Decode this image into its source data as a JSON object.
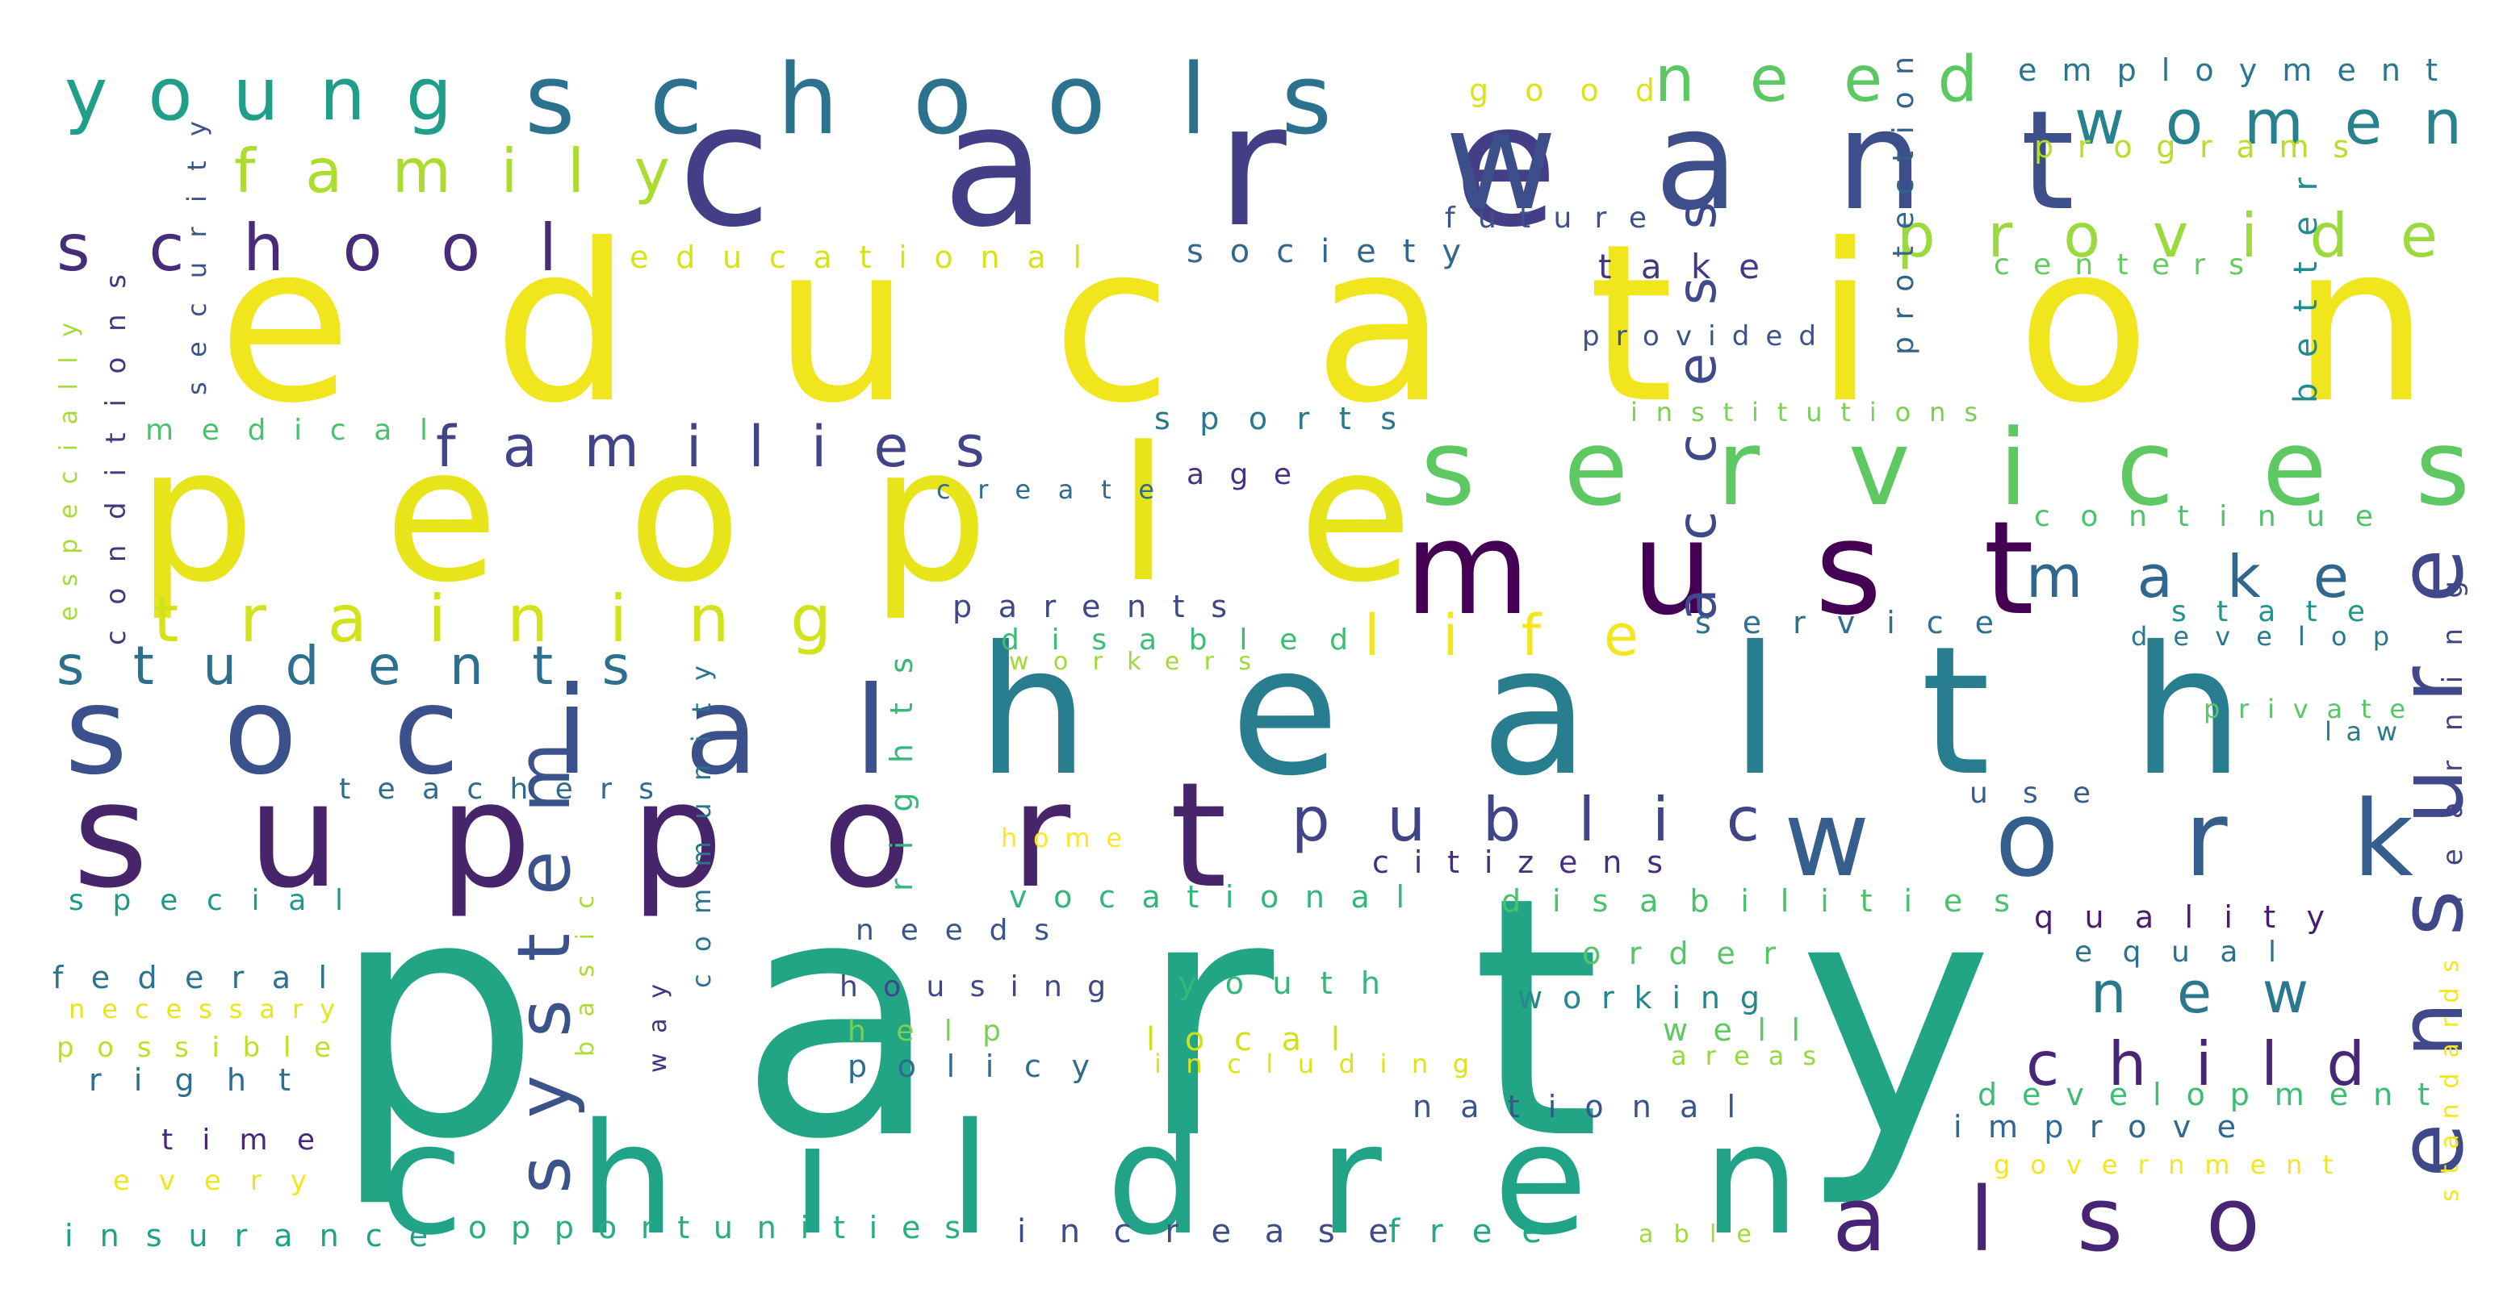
{
  "words": [
    {
      "text": "party",
      "color": "#21a585"
    },
    {
      "text": "education",
      "color": "#f1e51d"
    },
    {
      "text": "people",
      "color": "#e7e419"
    },
    {
      "text": "health",
      "color": "#287d8e"
    },
    {
      "text": "care",
      "color": "#433e85"
    },
    {
      "text": "support",
      "color": "#46256b"
    },
    {
      "text": "want",
      "color": "#3c4f8a"
    },
    {
      "text": "children",
      "color": "#20a386"
    },
    {
      "text": "social",
      "color": "#3b518b"
    },
    {
      "text": "services",
      "color": "#5ec962"
    },
    {
      "text": "must",
      "color": "#440154"
    },
    {
      "text": "work",
      "color": "#355e8d"
    },
    {
      "text": "ensure",
      "color": "#3f4889"
    },
    {
      "text": "schools",
      "color": "#2c728e"
    },
    {
      "text": "young",
      "color": "#1f9e89"
    },
    {
      "text": "system",
      "color": "#3b528b"
    },
    {
      "text": "also",
      "color": "#482475"
    },
    {
      "text": "school",
      "color": "#472c7a"
    },
    {
      "text": "family",
      "color": "#addc30"
    },
    {
      "text": "families",
      "color": "#414487"
    },
    {
      "text": "training",
      "color": "#d2e21b"
    },
    {
      "text": "students",
      "color": "#2d708e"
    },
    {
      "text": "public",
      "color": "#404588"
    },
    {
      "text": "provide",
      "color": "#9bd93c"
    },
    {
      "text": "need",
      "color": "#5cc863"
    },
    {
      "text": "women",
      "color": "#26828e"
    },
    {
      "text": "make",
      "color": "#31668e"
    },
    {
      "text": "child",
      "color": "#482677"
    },
    {
      "text": "new",
      "color": "#2a788e"
    },
    {
      "text": "life",
      "color": "#f4e61e"
    },
    {
      "text": "access",
      "color": "#3e4a89"
    },
    {
      "text": "good",
      "color": "#dde318"
    },
    {
      "text": "employment",
      "color": "#2a768e"
    },
    {
      "text": "programs",
      "color": "#b8de29"
    },
    {
      "text": "future",
      "color": "#3b528b"
    },
    {
      "text": "society",
      "color": "#31688e"
    },
    {
      "text": "educational",
      "color": "#d8e219"
    },
    {
      "text": "take",
      "color": "#453781"
    },
    {
      "text": "centers",
      "color": "#63cb5f"
    },
    {
      "text": "protection",
      "color": "#33638d"
    },
    {
      "text": "better",
      "color": "#228c8d"
    },
    {
      "text": "provided",
      "color": "#3b528b"
    },
    {
      "text": "institutions",
      "color": "#7ad151"
    },
    {
      "text": "security",
      "color": "#39558c"
    },
    {
      "text": "conditions",
      "color": "#453882"
    },
    {
      "text": "especially",
      "color": "#a5db36"
    },
    {
      "text": "medical",
      "color": "#4ac16d"
    },
    {
      "text": "sports",
      "color": "#2a788e"
    },
    {
      "text": "age",
      "color": "#46327e"
    },
    {
      "text": "create",
      "color": "#2f6c8e"
    },
    {
      "text": "continue",
      "color": "#4ec36b"
    },
    {
      "text": "parents",
      "color": "#3f4788"
    },
    {
      "text": "disabled",
      "color": "#3dbc74"
    },
    {
      "text": "workers",
      "color": "#a0da39"
    },
    {
      "text": "service",
      "color": "#2d718e"
    },
    {
      "text": "state",
      "color": "#1f958b"
    },
    {
      "text": "develop",
      "color": "#2a788e"
    },
    {
      "text": "learning",
      "color": "#414487"
    },
    {
      "text": "private",
      "color": "#56c667"
    },
    {
      "text": "law",
      "color": "#297a8e"
    },
    {
      "text": "teachers",
      "color": "#2f6b8e"
    },
    {
      "text": "community",
      "color": "#2c738e"
    },
    {
      "text": "rights",
      "color": "#37b878"
    },
    {
      "text": "home",
      "color": "#fde725"
    },
    {
      "text": "citizens",
      "color": "#46307e"
    },
    {
      "text": "use",
      "color": "#365d8d"
    },
    {
      "text": "special",
      "color": "#1f9a8a"
    },
    {
      "text": "vocational",
      "color": "#32b67a"
    },
    {
      "text": "disabilities",
      "color": "#4ac16d"
    },
    {
      "text": "quality",
      "color": "#481d6f"
    },
    {
      "text": "needs",
      "color": "#3a548c"
    },
    {
      "text": "equal",
      "color": "#2c728e"
    },
    {
      "text": "federal",
      "color": "#2c738e"
    },
    {
      "text": "basic",
      "color": "#addc30"
    },
    {
      "text": "way",
      "color": "#46337f"
    },
    {
      "text": "housing",
      "color": "#404688"
    },
    {
      "text": "youth",
      "color": "#35b779"
    },
    {
      "text": "order",
      "color": "#54c568"
    },
    {
      "text": "working",
      "color": "#24878e"
    },
    {
      "text": "necessary",
      "color": "#eae51a"
    },
    {
      "text": "possible",
      "color": "#bddf26"
    },
    {
      "text": "help",
      "color": "#7ad151"
    },
    {
      "text": "local",
      "color": "#d0e11c"
    },
    {
      "text": "well",
      "color": "#5ec962"
    },
    {
      "text": "policy",
      "color": "#2f6c8e"
    },
    {
      "text": "including",
      "color": "#dde318"
    },
    {
      "text": "areas",
      "color": "#95d840"
    },
    {
      "text": "right",
      "color": "#2e6e8e"
    },
    {
      "text": "development",
      "color": "#3dbc74"
    },
    {
      "text": "national",
      "color": "#39568c"
    },
    {
      "text": "improve",
      "color": "#31688e"
    },
    {
      "text": "standards",
      "color": "#f6e620"
    },
    {
      "text": "time",
      "color": "#482878"
    },
    {
      "text": "government",
      "color": "#f4e61e"
    },
    {
      "text": "every",
      "color": "#f1e51d"
    },
    {
      "text": "insurance",
      "color": "#1fa287"
    },
    {
      "text": "opportunities",
      "color": "#29af7f"
    },
    {
      "text": "increase",
      "color": "#3e4c8a"
    },
    {
      "text": "free",
      "color": "#22a884"
    },
    {
      "text": "able",
      "color": "#9fda3a"
    }
  ]
}
